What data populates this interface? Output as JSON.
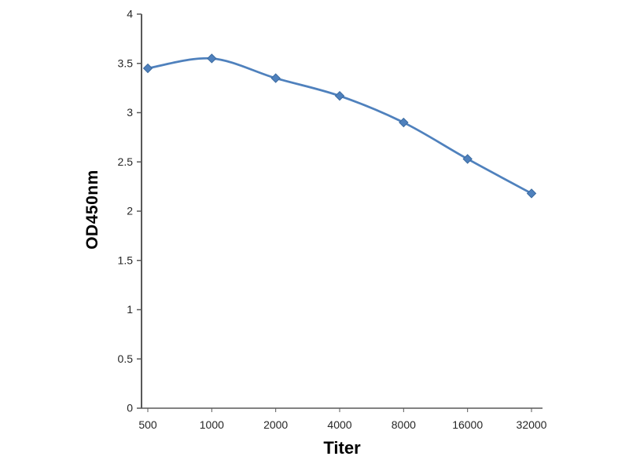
{
  "chart_data": {
    "type": "line",
    "categories": [
      "500",
      "1000",
      "2000",
      "4000",
      "8000",
      "16000",
      "32000"
    ],
    "values": [
      3.45,
      3.55,
      3.35,
      3.17,
      2.9,
      2.53,
      2.18
    ],
    "title": "",
    "xlabel": "Titer",
    "ylabel": "OD450nm",
    "ylim": [
      0,
      4
    ],
    "ytick_step": 0.5,
    "grid": false,
    "legend": "none",
    "line_color": "#4f81bd",
    "marker": "diamond",
    "axis_color": "#595959",
    "tick_label_color": "#262626"
  }
}
